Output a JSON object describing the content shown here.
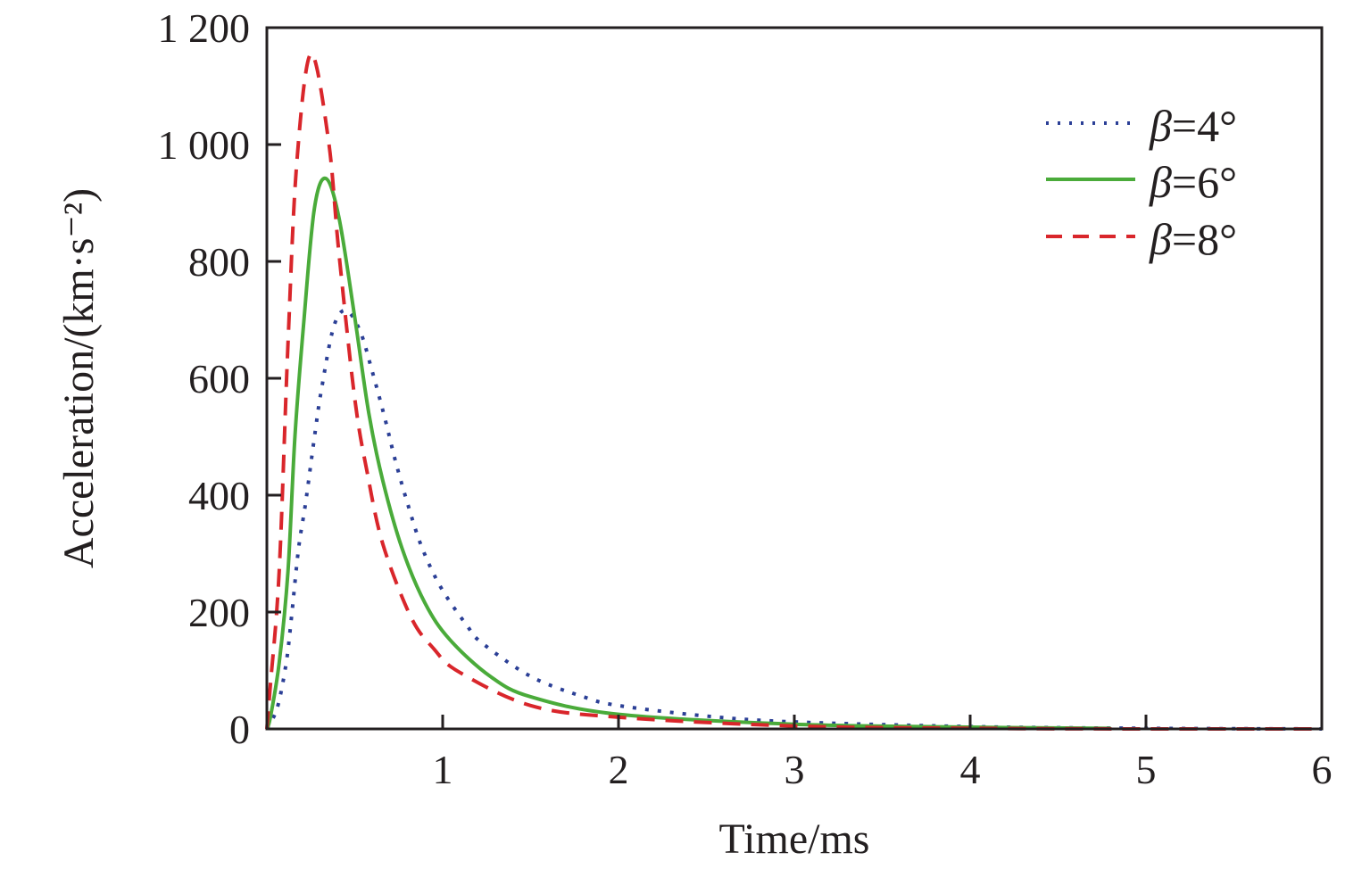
{
  "chart_data": {
    "type": "line",
    "title": "",
    "xlabel": "Time/ms",
    "ylabel": "Acceleration/(km·s⁻²)",
    "xlim": [
      0,
      6
    ],
    "ylim": [
      0,
      1200
    ],
    "xticks": [
      1,
      2,
      3,
      4,
      5,
      6
    ],
    "xtick_labels": [
      "1",
      "2",
      "3",
      "4",
      "5",
      "6"
    ],
    "yticks": [
      0,
      200,
      400,
      600,
      800,
      1000,
      1200
    ],
    "ytick_labels": [
      "0",
      "200",
      "400",
      "600",
      "800",
      "1 000",
      "1 200"
    ],
    "grid": false,
    "legend_position": "top-right",
    "series": [
      {
        "name": "β=4°",
        "color": "#2b3f96",
        "style": "dotted",
        "t": [
          0,
          0.06,
          0.11,
          0.14,
          0.18,
          0.22,
          0.27,
          0.31,
          0.38,
          0.45,
          0.53,
          0.6,
          0.67,
          0.73,
          0.8,
          0.88,
          0.99,
          1.14,
          1.22,
          1.5,
          1.8,
          2.0,
          2.5,
          3.0,
          4.0,
          5.0,
          6.0
        ],
        "a": [
          0,
          37,
          113,
          191,
          308,
          386,
          498,
          580,
          688,
          716,
          681,
          611,
          533,
          460,
          386,
          312,
          242,
          176,
          148,
          90,
          55,
          40,
          22,
          12,
          4,
          1,
          0
        ]
      },
      {
        "name": "β=6°",
        "color": "#4aab3a",
        "style": "solid",
        "t": [
          0,
          0.02,
          0.07,
          0.12,
          0.16,
          0.21,
          0.27,
          0.335,
          0.41,
          0.5,
          0.58,
          0.66,
          0.77,
          0.9,
          1.04,
          1.27,
          1.5,
          2.0,
          3.0,
          4.0,
          4.8
        ],
        "a": [
          0,
          20,
          113,
          269,
          502,
          696,
          890,
          942,
          875,
          704,
          540,
          424,
          308,
          215,
          153,
          90,
          55,
          25,
          8,
          3,
          1
        ]
      },
      {
        "name": "β=8°",
        "color": "#d9262b",
        "style": "dashed",
        "t": [
          0,
          0.02,
          0.07,
          0.12,
          0.17,
          0.25,
          0.35,
          0.41,
          0.5,
          0.57,
          0.66,
          0.82,
          0.95,
          1.09,
          1.5,
          2.0,
          3.0,
          4.0,
          5.0,
          6.0
        ],
        "a": [
          0,
          75,
          269,
          658,
          968,
          1155,
          1008,
          814,
          565,
          440,
          316,
          191,
          137,
          98,
          40,
          20,
          5,
          1,
          0,
          0
        ]
      }
    ]
  }
}
